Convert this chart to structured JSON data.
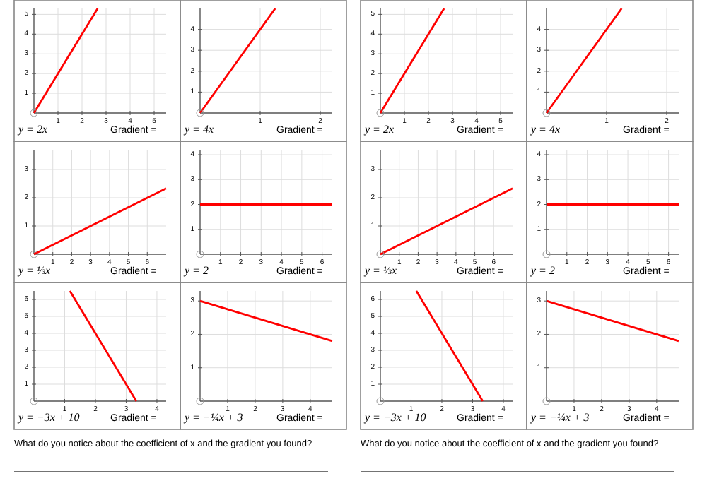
{
  "chart_data": [
    {
      "type": "line",
      "x": [
        0,
        2.65
      ],
      "values": [
        0,
        5.3
      ],
      "color": "#ff0000",
      "xlim": [
        0,
        5.5
      ],
      "ylim": [
        0,
        5.3
      ],
      "xticks": [
        1,
        2,
        3,
        4,
        5
      ],
      "yticks": [
        1,
        2,
        3,
        4,
        5
      ],
      "grid": true,
      "annotations": [
        "y = 2x",
        "Gradient ="
      ]
    },
    {
      "type": "line",
      "x": [
        0,
        1.25
      ],
      "values": [
        0,
        5
      ],
      "color": "#ff0000",
      "xlim": [
        0,
        2.2
      ],
      "ylim": [
        0,
        5
      ],
      "xticks": [
        1,
        2
      ],
      "yticks": [
        1,
        2,
        3,
        4
      ],
      "grid": true,
      "annotations": [
        "y = 4x",
        "Gradient ="
      ]
    },
    {
      "type": "line",
      "x": [
        0,
        2.65
      ],
      "values": [
        0,
        5.3
      ],
      "color": "#ff0000",
      "xlim": [
        0,
        5.5
      ],
      "ylim": [
        0,
        5.3
      ],
      "xticks": [
        1,
        2,
        3,
        4,
        5
      ],
      "yticks": [
        1,
        2,
        3,
        4,
        5
      ],
      "grid": true,
      "annotations": [
        "y = 2x",
        "Gradient ="
      ]
    },
    {
      "type": "line",
      "x": [
        0,
        1.25
      ],
      "values": [
        0,
        5
      ],
      "color": "#ff0000",
      "xlim": [
        0,
        2.2
      ],
      "ylim": [
        0,
        5
      ],
      "xticks": [
        1,
        2
      ],
      "yticks": [
        1,
        2,
        3,
        4
      ],
      "grid": true,
      "annotations": [
        "y = 4x",
        "Gradient ="
      ]
    },
    {
      "type": "line",
      "x": [
        0,
        7
      ],
      "values": [
        0,
        2.33
      ],
      "color": "#ff0000",
      "xlim": [
        0,
        7
      ],
      "ylim": [
        0,
        3.7
      ],
      "xticks": [
        1,
        2,
        3,
        4,
        5,
        6
      ],
      "yticks": [
        1,
        2,
        3
      ],
      "grid": true,
      "annotations": [
        "y = ⅓x",
        "Gradient ="
      ]
    },
    {
      "type": "line",
      "x": [
        0,
        6.5
      ],
      "values": [
        2,
        2
      ],
      "color": "#ff0000",
      "xlim": [
        0,
        6.5
      ],
      "ylim": [
        0,
        4.2
      ],
      "xticks": [
        1,
        2,
        3,
        4,
        5,
        6
      ],
      "yticks": [
        1,
        2,
        3,
        4
      ],
      "grid": true,
      "annotations": [
        "y = 2",
        "Gradient ="
      ]
    },
    {
      "type": "line",
      "x": [
        0,
        7
      ],
      "values": [
        0,
        2.33
      ],
      "color": "#ff0000",
      "xlim": [
        0,
        7
      ],
      "ylim": [
        0,
        3.7
      ],
      "xticks": [
        1,
        2,
        3,
        4,
        5,
        6
      ],
      "yticks": [
        1,
        2,
        3
      ],
      "grid": true,
      "annotations": [
        "y = ⅓x",
        "Gradient ="
      ]
    },
    {
      "type": "line",
      "x": [
        0,
        6.5
      ],
      "values": [
        2,
        2
      ],
      "color": "#ff0000",
      "xlim": [
        0,
        6.5
      ],
      "ylim": [
        0,
        4.2
      ],
      "xticks": [
        1,
        2,
        3,
        4,
        5,
        6
      ],
      "yticks": [
        1,
        2,
        3,
        4
      ],
      "grid": true,
      "annotations": [
        "y = 2",
        "Gradient ="
      ]
    },
    {
      "type": "line",
      "x": [
        1.17,
        3.33
      ],
      "values": [
        6.5,
        0
      ],
      "color": "#ff0000",
      "xlim": [
        0,
        4.3
      ],
      "ylim": [
        0,
        6.5
      ],
      "xticks": [
        1,
        2,
        3,
        4
      ],
      "yticks": [
        1,
        2,
        3,
        4,
        5,
        6
      ],
      "grid": true,
      "annotations": [
        "y = −3x + 10",
        "Gradient ="
      ]
    },
    {
      "type": "line",
      "x": [
        0,
        4.8
      ],
      "values": [
        3,
        1.8
      ],
      "color": "#ff0000",
      "xlim": [
        0,
        4.8
      ],
      "ylim": [
        0,
        3.3
      ],
      "xticks": [
        1,
        2,
        3,
        4
      ],
      "yticks": [
        1,
        2,
        3
      ],
      "grid": true,
      "annotations": [
        "y = −¼x + 3",
        "Gradient ="
      ]
    },
    {
      "type": "line",
      "x": [
        1.17,
        3.33
      ],
      "values": [
        6.5,
        0
      ],
      "color": "#ff0000",
      "xlim": [
        0,
        4.3
      ],
      "ylim": [
        0,
        6.5
      ],
      "xticks": [
        1,
        2,
        3,
        4
      ],
      "yticks": [
        1,
        2,
        3,
        4,
        5,
        6
      ],
      "grid": true,
      "annotations": [
        "y = −3x + 10",
        "Gradient ="
      ]
    },
    {
      "type": "line",
      "x": [
        0,
        4.8
      ],
      "values": [
        3,
        1.8
      ],
      "color": "#ff0000",
      "xlim": [
        0,
        4.8
      ],
      "ylim": [
        0,
        3.3
      ],
      "xticks": [
        1,
        2,
        3,
        4
      ],
      "yticks": [
        1,
        2,
        3
      ],
      "grid": true,
      "annotations": [
        "y = −¼x + 3",
        "Gradient ="
      ]
    },
    {
      "type": "other",
      "title": "What do you notice about the coefficient of x and the gradient you found?"
    },
    {
      "type": "other",
      "title": "What do you notice about the coefficient of x and the gradient you found?"
    }
  ]
}
